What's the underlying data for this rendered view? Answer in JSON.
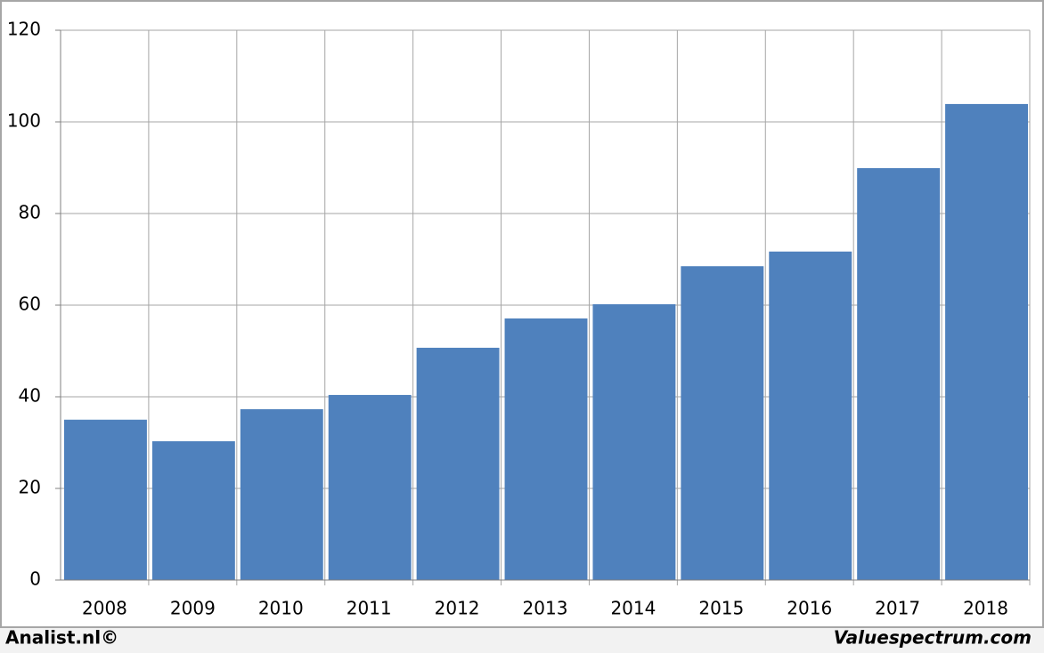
{
  "chart_data": {
    "type": "bar",
    "categories": [
      "2008",
      "2009",
      "2010",
      "2011",
      "2012",
      "2013",
      "2014",
      "2015",
      "2016",
      "2017",
      "2018"
    ],
    "values": [
      35,
      30.3,
      37.3,
      40.4,
      50.7,
      57.1,
      60.2,
      68.5,
      71.7,
      89.9,
      103.9
    ],
    "color": "#4f81bd",
    "ylim": [
      0,
      120
    ],
    "yticks": [
      0,
      20,
      40,
      60,
      80,
      100,
      120
    ],
    "grid": true,
    "footer_left": "Analist.nl©",
    "footer_right": "Valuespectrum.com"
  }
}
